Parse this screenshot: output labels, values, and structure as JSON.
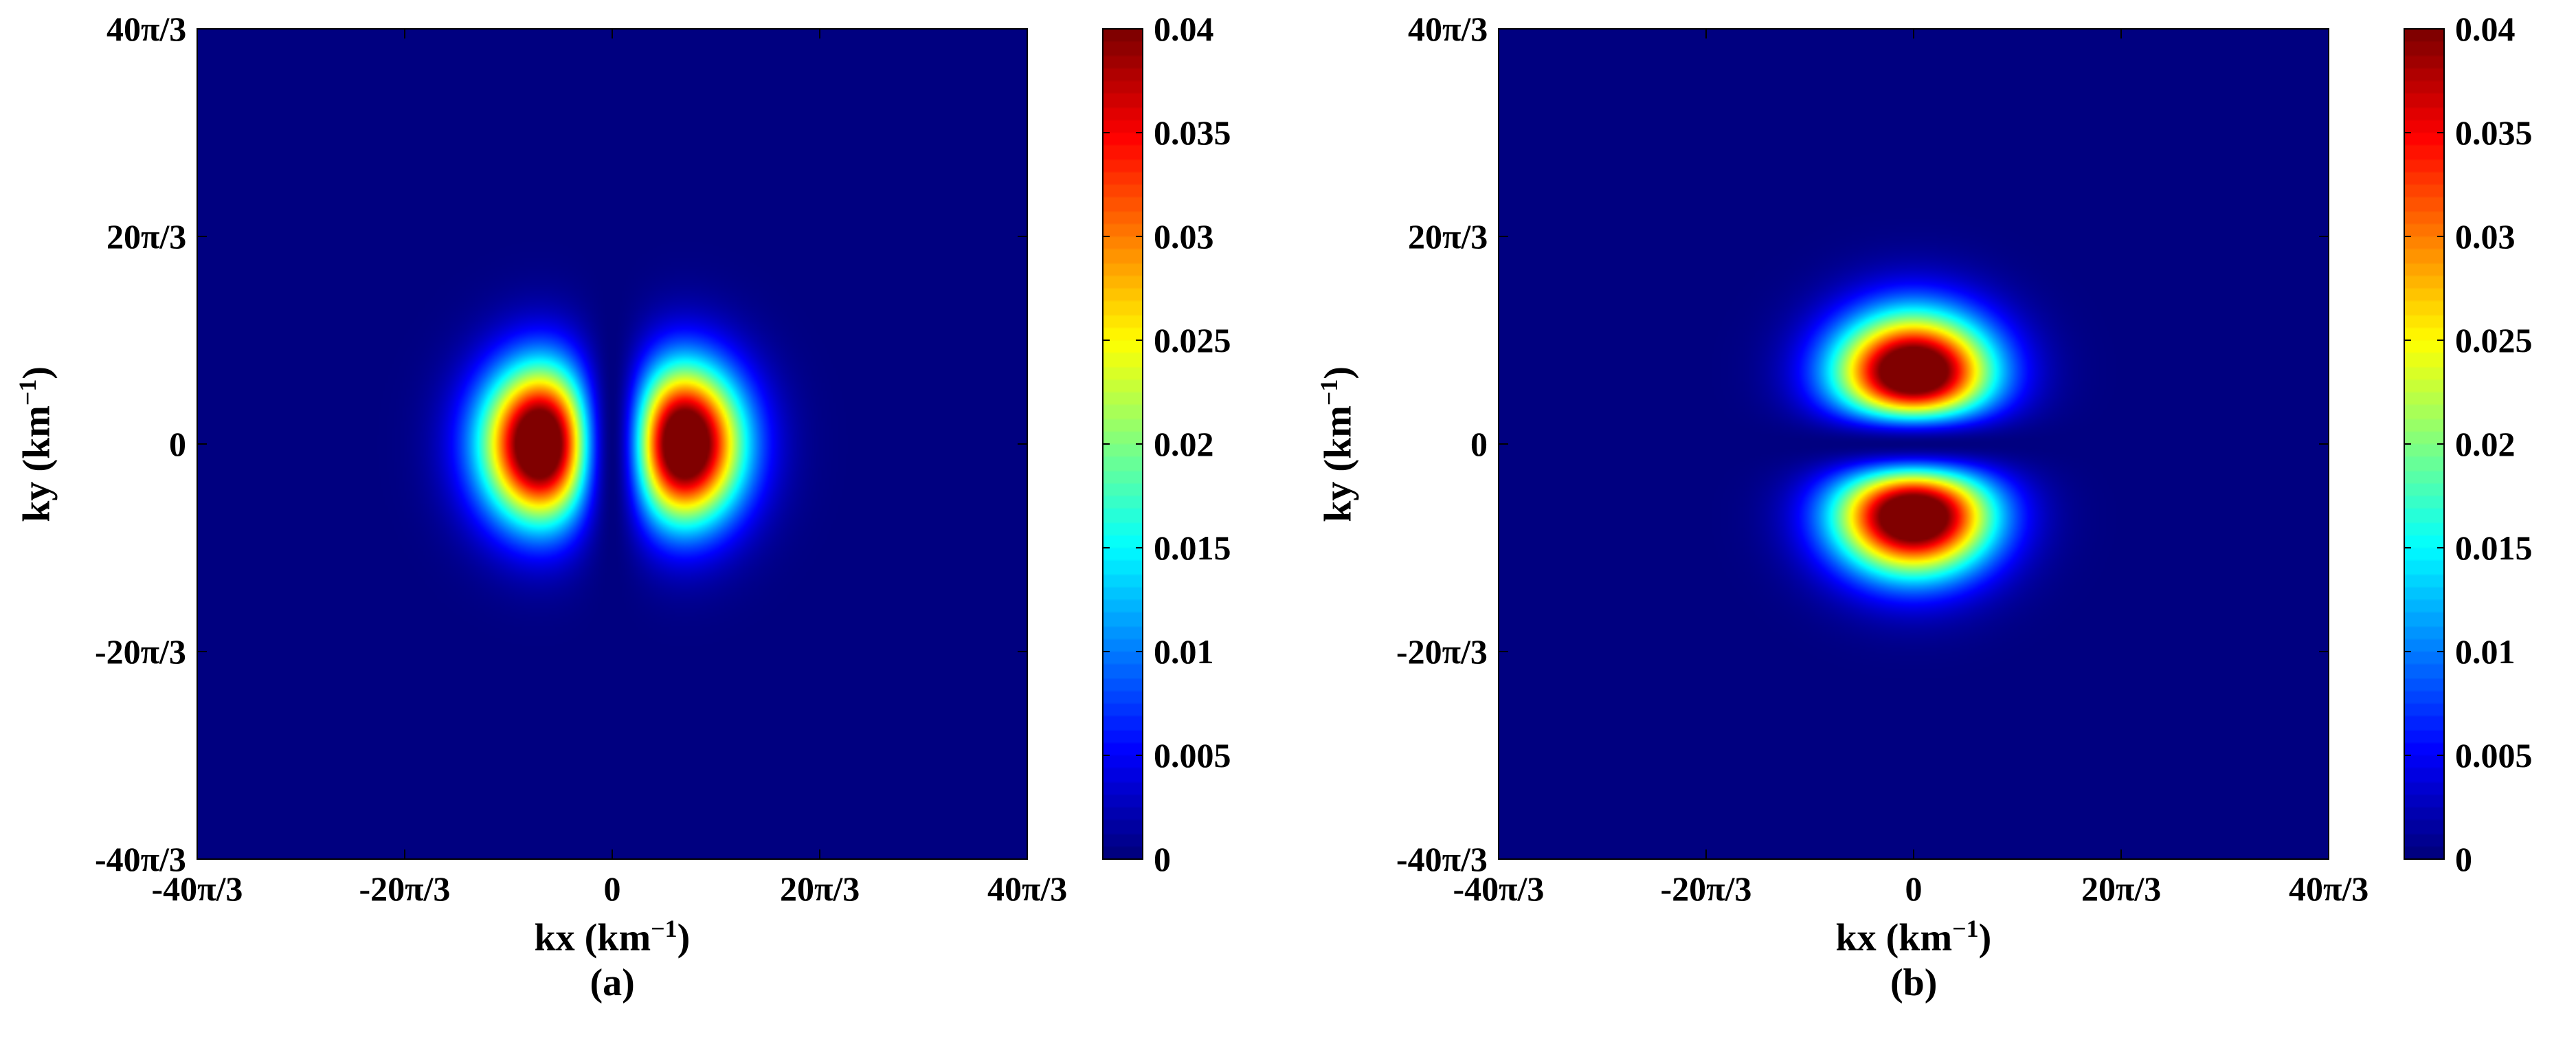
{
  "chart_data": [
    {
      "type": "heatmap",
      "panel_label": "(a)",
      "xlabel": "kx (km",
      "xlabel_sup": "−1",
      "xlabel_end": ")",
      "ylabel": "ky (km",
      "ylabel_sup": "−1",
      "ylabel_end": ")",
      "x_ticks": [
        "-40π/3",
        "-20π/3",
        "0",
        "20π/3",
        "40π/3"
      ],
      "x_tick_values": [
        -41.888,
        -20.944,
        0,
        20.944,
        41.888
      ],
      "y_ticks": [
        "-40π/3",
        "-20π/3",
        "0",
        "20π/3",
        "40π/3"
      ],
      "y_tick_values": [
        -41.888,
        -20.944,
        0,
        20.944,
        41.888
      ],
      "xlim": [
        -41.888,
        41.888
      ],
      "ylim": [
        -41.888,
        41.888
      ],
      "colorbar": {
        "colormap": "jet",
        "clim": [
          0,
          0.04
        ],
        "ticks": [
          "0",
          "0.005",
          "0.01",
          "0.015",
          "0.02",
          "0.025",
          "0.03",
          "0.035",
          "0.04"
        ],
        "tick_values": [
          0,
          0.005,
          0.01,
          0.015,
          0.02,
          0.025,
          0.03,
          0.035,
          0.04
        ]
      },
      "peaks": [
        {
          "kx": -5.2,
          "ky": 0,
          "value": 0.04
        },
        {
          "kx": 5.2,
          "ky": 0,
          "value": 0.04
        }
      ],
      "zero_line": "kx = 0"
    },
    {
      "type": "heatmap",
      "panel_label": "(b)",
      "xlabel": "kx (km",
      "xlabel_sup": "−1",
      "xlabel_end": ")",
      "ylabel": "ky (km",
      "ylabel_sup": "−1",
      "ylabel_end": ")",
      "x_ticks": [
        "-40π/3",
        "-20π/3",
        "0",
        "20π/3",
        "40π/3"
      ],
      "x_tick_values": [
        -41.888,
        -20.944,
        0,
        20.944,
        41.888
      ],
      "y_ticks": [
        "-40π/3",
        "-20π/3",
        "0",
        "20π/3",
        "40π/3"
      ],
      "y_tick_values": [
        -41.888,
        -20.944,
        0,
        20.944,
        41.888
      ],
      "xlim": [
        -41.888,
        41.888
      ],
      "ylim": [
        -41.888,
        41.888
      ],
      "colorbar": {
        "colormap": "jet",
        "clim": [
          0,
          0.04
        ],
        "ticks": [
          "0",
          "0.005",
          "0.01",
          "0.015",
          "0.02",
          "0.025",
          "0.03",
          "0.035",
          "0.04"
        ],
        "tick_values": [
          0,
          0.005,
          0.01,
          0.015,
          0.02,
          0.025,
          0.03,
          0.035,
          0.04
        ]
      },
      "peaks": [
        {
          "kx": 0,
          "ky": 5.2,
          "value": 0.04
        },
        {
          "kx": 0,
          "ky": -5.2,
          "value": 0.04
        }
      ],
      "zero_line": "ky = 0"
    }
  ]
}
